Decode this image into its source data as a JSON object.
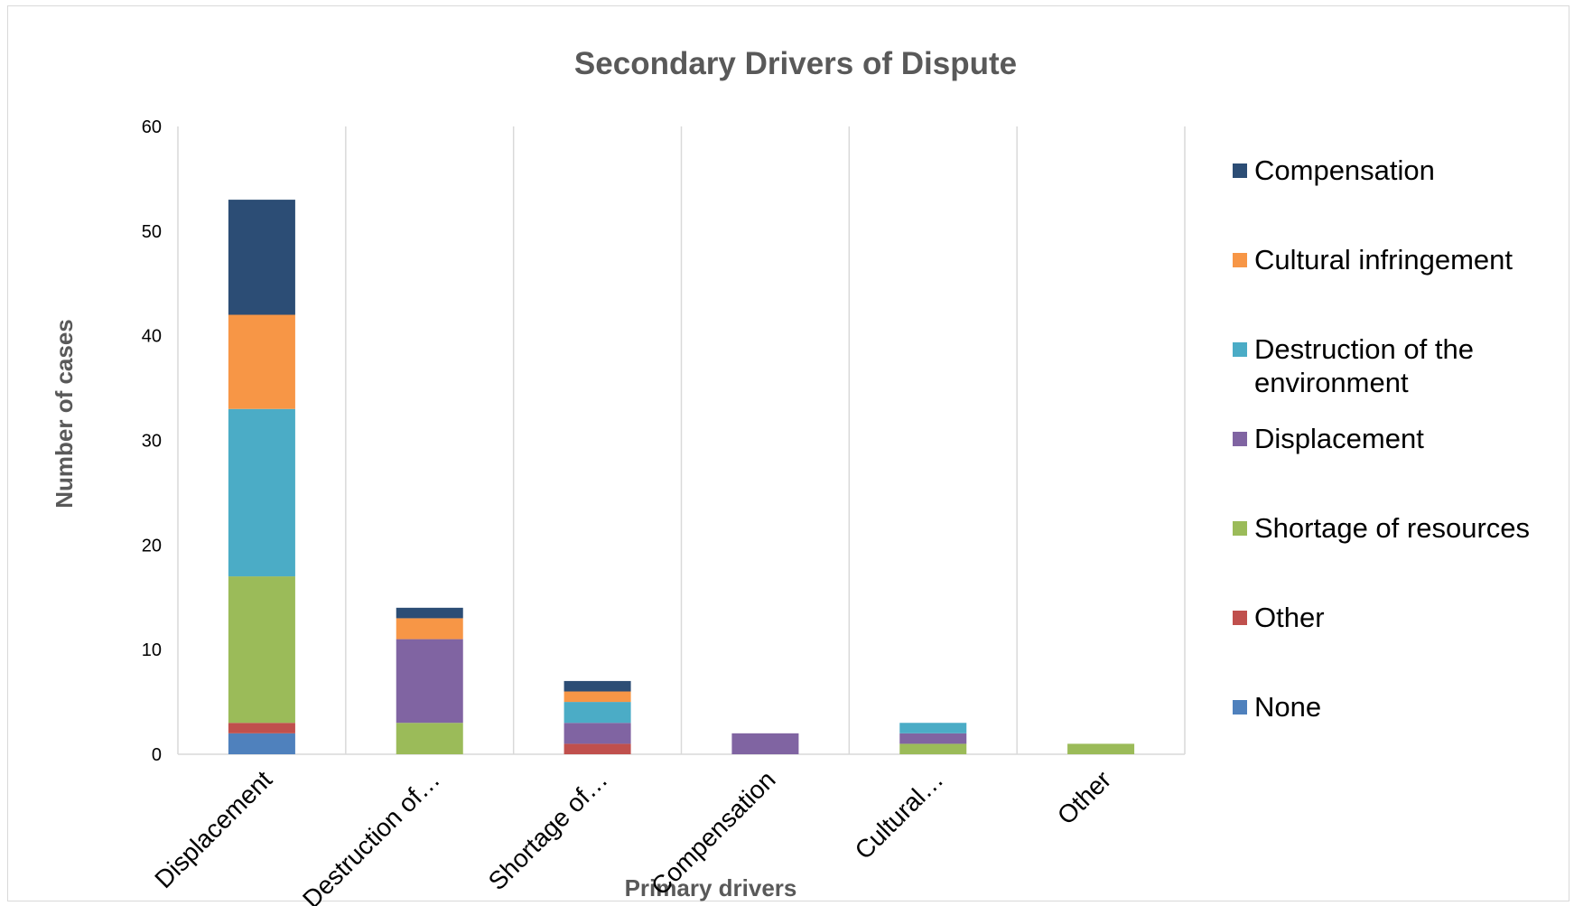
{
  "chart_data": {
    "type": "bar",
    "stacked": true,
    "title": "Secondary Drivers of Dispute",
    "xlabel": "Primary drivers",
    "ylabel": "Number of cases",
    "ylim": [
      0,
      60
    ],
    "yticks": [
      0,
      10,
      20,
      30,
      40,
      50,
      60
    ],
    "categories": [
      "Displacement",
      "Destruction of…",
      "Shortage of…",
      "Compensation",
      "Cultural…",
      "Other"
    ],
    "series": [
      {
        "name": "None",
        "color": "#4F81BD",
        "values": [
          2,
          0,
          0,
          0,
          0,
          0
        ]
      },
      {
        "name": "Other",
        "color": "#C0504D",
        "values": [
          1,
          0,
          1,
          0,
          0,
          0
        ]
      },
      {
        "name": "Shortage of resources",
        "color": "#9BBB59",
        "values": [
          14,
          3,
          0,
          0,
          1,
          1
        ]
      },
      {
        "name": "Displacement",
        "color": "#8064A2",
        "values": [
          0,
          8,
          2,
          2,
          1,
          0
        ]
      },
      {
        "name": "Destruction of the environment",
        "color": "#4BACC6",
        "values": [
          16,
          0,
          2,
          0,
          1,
          0
        ]
      },
      {
        "name": "Cultural infringement",
        "color": "#F79646",
        "values": [
          9,
          2,
          1,
          0,
          0,
          0
        ]
      },
      {
        "name": "Compensation",
        "color": "#2C4D75",
        "values": [
          11,
          1,
          1,
          0,
          0,
          0
        ]
      }
    ],
    "grid": "vertical category separators",
    "legend_position": "right"
  }
}
